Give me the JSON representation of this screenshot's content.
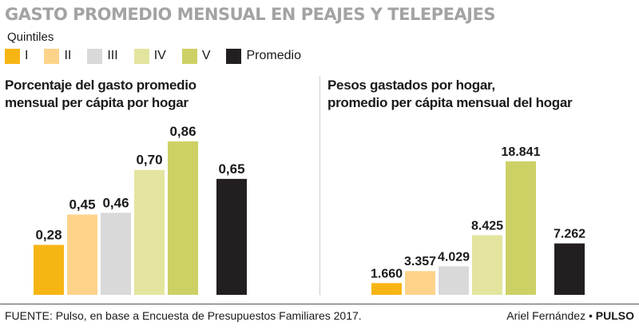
{
  "title": "GASTO PROMEDIO MENSUAL EN PEAJES Y TELEPEAJES",
  "legend": {
    "title": "Quintiles",
    "items": [
      {
        "label": "I",
        "color": "#f7b514"
      },
      {
        "label": "II",
        "color": "#fdd38a"
      },
      {
        "label": "III",
        "color": "#d9d9d9"
      },
      {
        "label": "IV",
        "color": "#e3e59f"
      },
      {
        "label": "V",
        "color": "#cdd165"
      },
      {
        "label": "Promedio",
        "color": "#231f20"
      }
    ]
  },
  "chart_data": [
    {
      "type": "bar",
      "title": "Porcentaje del gasto promedio\nmensual per cápita por hogar",
      "categories": [
        "I",
        "II",
        "III",
        "IV",
        "V",
        "Promedio"
      ],
      "values": [
        0.28,
        0.45,
        0.46,
        0.7,
        0.86,
        0.65
      ],
      "labels": [
        "0,28",
        "0,45",
        "0,46",
        "0,70",
        "0,86",
        "0,65"
      ],
      "colors": [
        "#f7b514",
        "#fdd38a",
        "#d9d9d9",
        "#e3e59f",
        "#cdd165",
        "#231f20"
      ],
      "ylim": [
        0,
        0.86
      ],
      "grid": false
    },
    {
      "type": "bar",
      "title": "Pesos gastados por hogar,\n promedio per cápita mensual del hogar",
      "categories": [
        "I",
        "II",
        "III",
        "IV",
        "V",
        "Promedio"
      ],
      "values": [
        1660,
        3357,
        4029,
        8425,
        18841,
        7262
      ],
      "labels": [
        "1.660",
        "3.357",
        "4.029",
        "8.425",
        "18.841",
        "7.262"
      ],
      "colors": [
        "#f7b514",
        "#fdd38a",
        "#d9d9d9",
        "#e3e59f",
        "#cdd165",
        "#231f20"
      ],
      "ylim": [
        0,
        18841
      ],
      "grid": false
    }
  ],
  "footer": {
    "source": "FUENTE: Pulso, en base a Encuesta de Presupuestos Familiares 2017.",
    "author": "Ariel Fernández",
    "separator": "•",
    "brand": "PULSO"
  }
}
